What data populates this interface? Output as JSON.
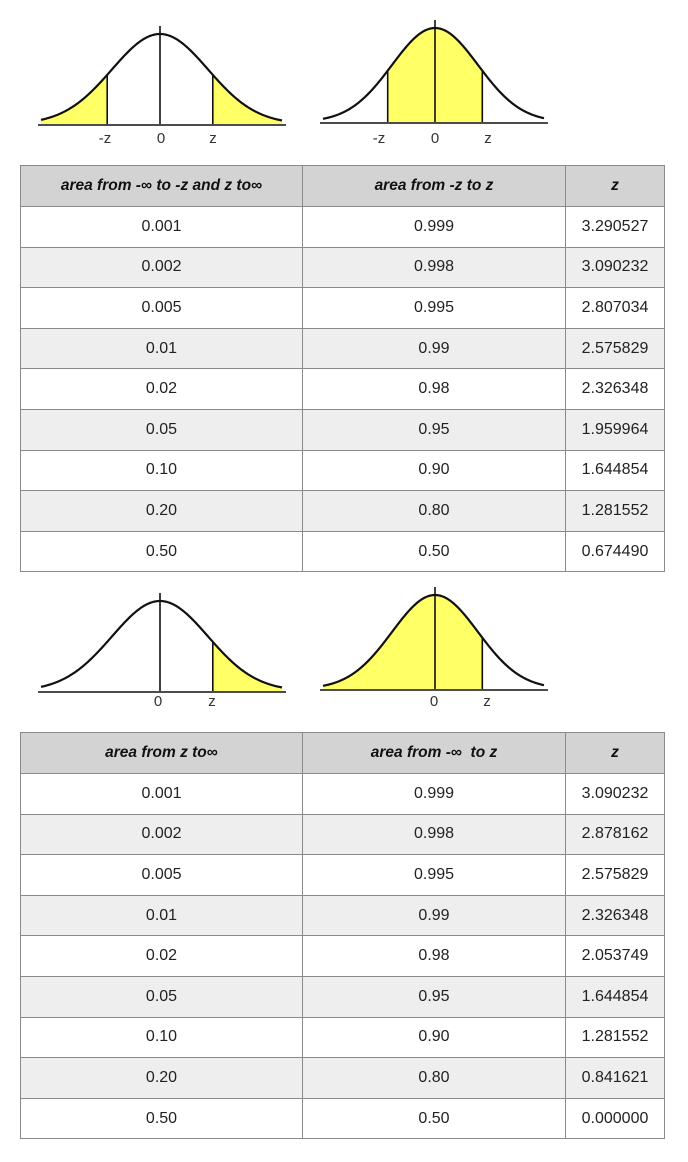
{
  "colors": {
    "fill": "#ffff66",
    "curve": "#111111",
    "header_bg": "#d3d3d3",
    "alt_row_bg": "#eeeeee"
  },
  "figures_top": {
    "two_tail": {
      "labels": [
        "-z",
        "0",
        "z"
      ]
    },
    "central": {
      "labels": [
        "-z",
        "0",
        "z"
      ]
    }
  },
  "table_top": {
    "headers": {
      "col1": {
        "pre": "area from -",
        "sym": "∞",
        "post": " to -z and z to",
        "sym2": "∞"
      },
      "col2": {
        "text": "area from -z to z"
      },
      "col3": {
        "text": "z"
      }
    },
    "rows": [
      [
        "0.001",
        "0.999",
        "3.290527"
      ],
      [
        "0.002",
        "0.998",
        "3.090232"
      ],
      [
        "0.005",
        "0.995",
        "2.807034"
      ],
      [
        "0.01",
        "0.99",
        "2.575829"
      ],
      [
        "0.02",
        "0.98",
        "2.326348"
      ],
      [
        "0.05",
        "0.95",
        "1.959964"
      ],
      [
        "0.10",
        "0.90",
        "1.644854"
      ],
      [
        "0.20",
        "0.80",
        "1.281552"
      ],
      [
        "0.50",
        "0.50",
        "0.674490"
      ]
    ]
  },
  "figures_bottom": {
    "right_tail": {
      "labels": [
        "0",
        "z"
      ]
    },
    "left_cumulative": {
      "labels": [
        "0",
        "z"
      ]
    }
  },
  "table_bottom": {
    "headers": {
      "col1": {
        "pre": "area from z to",
        "sym": "∞"
      },
      "col2": {
        "pre": "area from -",
        "sym": "∞",
        "post": "  to z"
      },
      "col3": {
        "text": "z"
      }
    },
    "rows": [
      [
        "0.001",
        "0.999",
        "3.090232"
      ],
      [
        "0.002",
        "0.998",
        "2.878162"
      ],
      [
        "0.005",
        "0.995",
        "2.575829"
      ],
      [
        "0.01",
        "0.99",
        "2.326348"
      ],
      [
        "0.02",
        "0.98",
        "2.053749"
      ],
      [
        "0.05",
        "0.95",
        "1.644854"
      ],
      [
        "0.10",
        "0.90",
        "1.281552"
      ],
      [
        "0.20",
        "0.80",
        "0.841621"
      ],
      [
        "0.50",
        "0.50",
        "0.000000"
      ]
    ]
  }
}
